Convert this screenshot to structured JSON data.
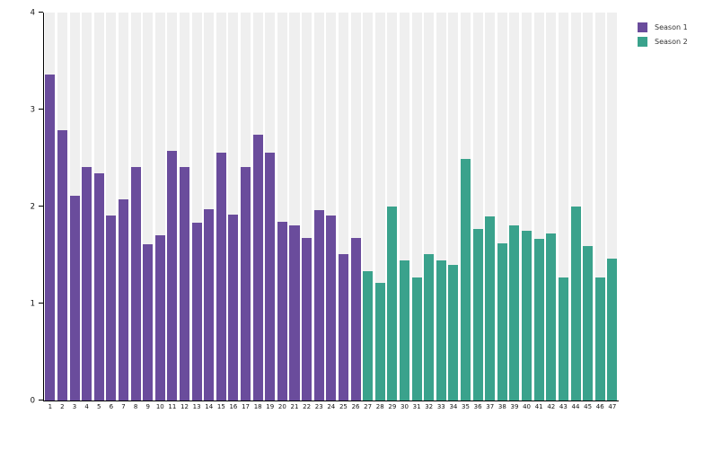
{
  "chart_data": {
    "type": "bar",
    "title": "",
    "xlabel": "",
    "ylabel": "",
    "ylim": [
      0,
      4
    ],
    "yticks": [
      0,
      1,
      2,
      3,
      4
    ],
    "grid": false,
    "legend_position": "top-right",
    "plot_stripe_color": "#efefef",
    "axis_color": "#000000",
    "series": [
      {
        "name": "Season 1",
        "color": "#6a4c9c",
        "categories": [
          "1",
          "2",
          "3",
          "4",
          "5",
          "6",
          "7",
          "8",
          "9",
          "10",
          "11",
          "12",
          "13",
          "14",
          "15",
          "16",
          "17",
          "18",
          "19",
          "20",
          "21",
          "22",
          "23",
          "24",
          "25",
          "26"
        ],
        "values": [
          3.36,
          2.79,
          2.11,
          2.41,
          2.34,
          1.91,
          2.07,
          2.41,
          1.61,
          1.7,
          2.57,
          2.41,
          1.83,
          1.97,
          2.56,
          1.92,
          2.41,
          2.74,
          2.56,
          1.84,
          1.81,
          1.68,
          1.96,
          1.91,
          1.51,
          1.68
        ]
      },
      {
        "name": "Season 2",
        "color": "#3aa28c",
        "categories": [
          "27",
          "28",
          "29",
          "30",
          "31",
          "32",
          "33",
          "34",
          "35",
          "36",
          "37",
          "38",
          "39",
          "40",
          "41",
          "42",
          "43",
          "44",
          "45",
          "46",
          "47"
        ],
        "values": [
          1.33,
          1.21,
          2.0,
          1.44,
          1.27,
          1.51,
          1.44,
          1.4,
          2.49,
          1.77,
          1.9,
          1.62,
          1.81,
          1.75,
          1.67,
          1.72,
          1.27,
          2.0,
          1.59,
          1.27,
          1.46
        ]
      }
    ]
  }
}
